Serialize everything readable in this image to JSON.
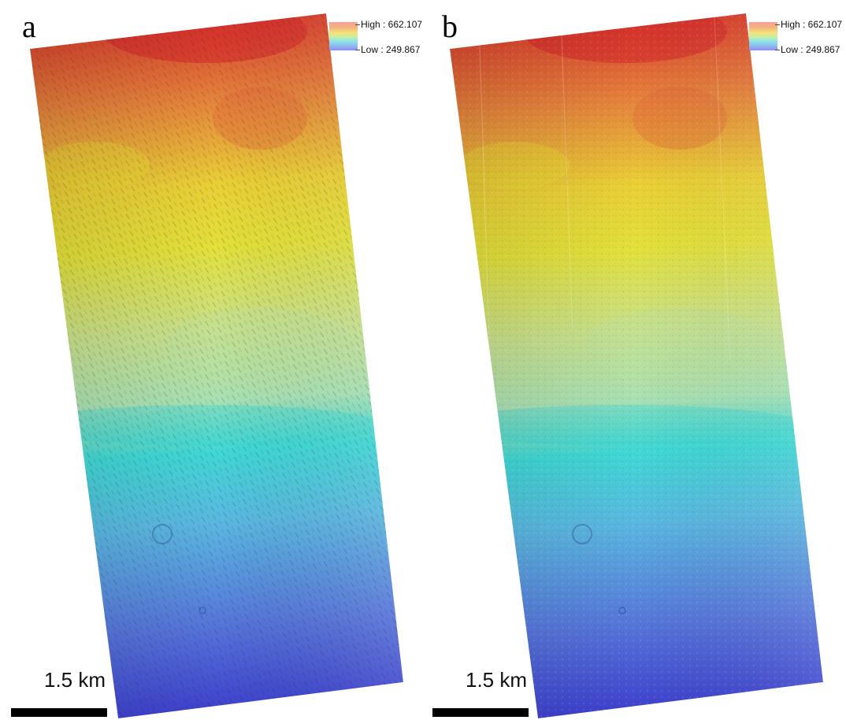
{
  "panels": [
    {
      "letter": "a",
      "legend": {
        "high": "High : 662.107",
        "low": "Low : 249.867"
      },
      "scale_bar": "1.5 km",
      "texture": "dune-streaks"
    },
    {
      "letter": "b",
      "legend": {
        "high": "High : 662.107",
        "low": "Low : 249.867"
      },
      "scale_bar": "1.5 km",
      "texture": "speckled"
    }
  ],
  "colors": {
    "high": "#d62a22",
    "orange": "#e98a3a",
    "yellow": "#e6e028",
    "yellow_green": "#c6e08a",
    "cyan": "#2fd9d6",
    "light_blue": "#60b2e0",
    "blue": "#4b62d8",
    "low": "#3b3bd0"
  }
}
